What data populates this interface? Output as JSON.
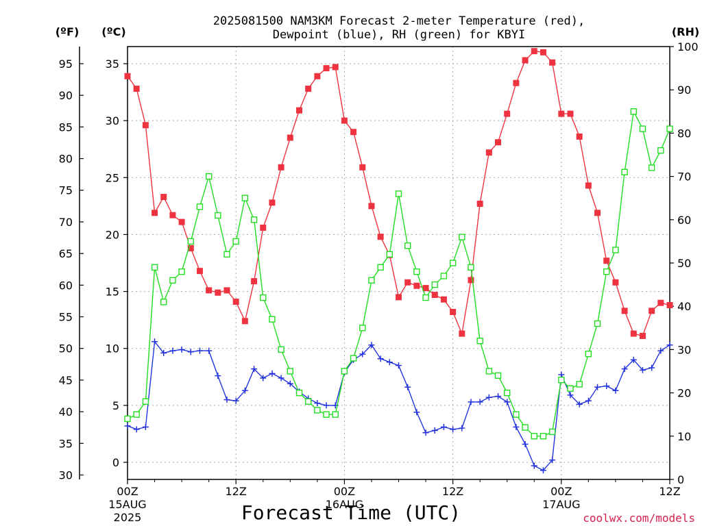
{
  "chart_data": {
    "type": "line",
    "title": "2025081500 NAM3KM Forecast 2-meter Temperature (red), Dewpoint (blue), RH (green) for KBYI",
    "title_lines": [
      "2025081500 NAM3KM Forecast 2-meter Temperature (red),",
      "Dewpoint (blue), RH (green) for KBYI"
    ],
    "xlabel": "Forecast Time (UTC)",
    "units": {
      "fahrenheit": "(ºF)",
      "celsius": "(ºC)",
      "rh": "(RH)"
    },
    "credit": "coolwx.com/models",
    "x_hours": [
      0,
      1,
      2,
      3,
      4,
      5,
      6,
      7,
      8,
      9,
      10,
      11,
      12,
      13,
      14,
      15,
      16,
      17,
      18,
      19,
      20,
      21,
      22,
      23,
      24,
      25,
      26,
      27,
      28,
      29,
      30,
      31,
      32,
      33,
      34,
      35,
      36,
      37,
      38,
      39,
      40,
      41,
      42,
      43,
      44,
      45,
      46,
      47,
      48,
      49,
      50,
      51,
      52,
      53,
      54,
      55,
      56,
      57,
      58,
      59,
      60
    ],
    "x_ticks": [
      {
        "hour": 0,
        "label": "00Z",
        "label2": "15AUG",
        "label3": "2025"
      },
      {
        "hour": 12,
        "label": "12Z",
        "label2": "",
        "label3": ""
      },
      {
        "hour": 24,
        "label": "00Z",
        "label2": "16AUG",
        "label3": ""
      },
      {
        "hour": 36,
        "label": "12Z",
        "label2": "",
        "label3": ""
      },
      {
        "hour": 48,
        "label": "00Z",
        "label2": "17AUG",
        "label3": ""
      },
      {
        "hour": 60,
        "label": "12Z",
        "label2": "",
        "label3": ""
      }
    ],
    "x_range": [
      0,
      60
    ],
    "c_range": [
      -1.5,
      36.5
    ],
    "rh_range": [
      0,
      100
    ],
    "c_ticks": [
      "0",
      "5",
      "10",
      "15",
      "20",
      "25",
      "30",
      "35"
    ],
    "f_ticks": [
      "30",
      "35",
      "40",
      "45",
      "50",
      "55",
      "60",
      "65",
      "70",
      "75",
      "80",
      "85",
      "90",
      "95"
    ],
    "rh_ticks": [
      "0",
      "10",
      "20",
      "30",
      "40",
      "50",
      "60",
      "70",
      "80",
      "90",
      "100"
    ],
    "grid": true,
    "series": [
      {
        "key": "temperature",
        "color": "#ee3340",
        "marker": "filled-square",
        "axis": "celsius",
        "values": [
          33.9,
          32.8,
          29.6,
          21.9,
          23.3,
          21.7,
          21.1,
          18.8,
          16.8,
          15.1,
          14.9,
          15.1,
          14.1,
          12.4,
          15.9,
          20.6,
          22.8,
          25.9,
          28.5,
          30.9,
          32.8,
          33.9,
          34.6,
          34.7,
          30.0,
          29.0,
          25.9,
          22.5,
          19.8,
          18.2,
          14.5,
          15.8,
          15.5,
          15.3,
          14.7,
          14.3,
          13.2,
          11.3,
          16.0,
          22.7,
          27.2,
          28.1,
          30.6,
          33.3,
          35.3,
          36.1,
          36.0,
          35.1,
          30.6,
          30.6,
          28.6,
          24.3,
          21.9,
          17.7,
          15.8,
          13.3,
          11.3,
          11.1,
          13.3,
          14.0,
          13.8
        ]
      },
      {
        "key": "dewpoint",
        "color": "#2233dd",
        "marker": "plus",
        "axis": "celsius",
        "values": [
          3.2,
          2.9,
          3.1,
          10.6,
          9.6,
          9.8,
          9.9,
          9.7,
          9.8,
          9.8,
          7.6,
          5.5,
          5.4,
          6.3,
          8.2,
          7.4,
          7.8,
          7.4,
          6.9,
          6.2,
          5.6,
          5.2,
          5.0,
          5.0,
          7.9,
          9.0,
          9.5,
          10.3,
          9.1,
          8.8,
          8.5,
          6.6,
          4.4,
          2.6,
          2.8,
          3.1,
          2.9,
          3.0,
          5.3,
          5.3,
          5.7,
          5.8,
          5.3,
          3.1,
          1.6,
          -0.3,
          -0.7,
          0.2,
          7.7,
          5.9,
          5.1,
          5.4,
          6.6,
          6.7,
          6.3,
          8.2,
          9.0,
          8.1,
          8.3,
          9.8,
          10.3
        ]
      },
      {
        "key": "rh",
        "color": "#22dd22",
        "marker": "open-square",
        "axis": "rh",
        "values": [
          14,
          15,
          18,
          49,
          41,
          46,
          48,
          55,
          63,
          70,
          61,
          52,
          55,
          65,
          60,
          42,
          37,
          30,
          25,
          20,
          18,
          16,
          15,
          15,
          25,
          28,
          35,
          46,
          49,
          52,
          66,
          54,
          48,
          42,
          45,
          47,
          50,
          56,
          49,
          32,
          25,
          24,
          20,
          15,
          12,
          10,
          10,
          11,
          23,
          21,
          22,
          29,
          36,
          48,
          53,
          71,
          85,
          81,
          72,
          76,
          81
        ]
      }
    ]
  }
}
